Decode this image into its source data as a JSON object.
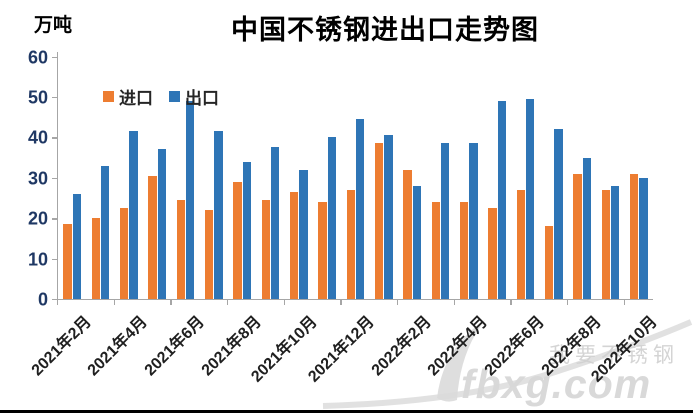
{
  "header": {
    "title": "中国不锈钢进出口走势图",
    "unit_label": "万吨"
  },
  "legend": [
    {
      "label": "进口",
      "color": "#ED7D31"
    },
    {
      "label": "出口",
      "color": "#2E75B6"
    }
  ],
  "watermark": {
    "slogan_text": "我要不锈钢",
    "site_text": "fbxg.com",
    "color": "#d8d8d8"
  },
  "colors": {
    "import_bar": "#ED7D31",
    "export_bar": "#2E75B6",
    "axis": "#a6a6a6",
    "y_tick_label": "#1f3864",
    "x_tick_label": "#1f1f1f"
  },
  "chart_data": {
    "type": "bar",
    "title": "中国不锈钢进出口走势图",
    "ylabel": "万吨",
    "xlabel": "",
    "ylim": [
      0,
      60
    ],
    "y_ticks": [
      0,
      10,
      20,
      30,
      40,
      50,
      60
    ],
    "grid": false,
    "legend_position": "top-left-inside",
    "categories": [
      "2021年2月",
      "2021年3月",
      "2021年4月",
      "2021年5月",
      "2021年6月",
      "2021年7月",
      "2021年8月",
      "2021年9月",
      "2021年10月",
      "2021年11月",
      "2021年12月",
      "2022年1月",
      "2022年2月",
      "2022年3月",
      "2022年4月",
      "2022年5月",
      "2022年6月",
      "2022年7月",
      "2022年8月",
      "2022年9月",
      "2022年10月"
    ],
    "x_tick_labels_shown": [
      "2021年2月",
      "2021年4月",
      "2021年6月",
      "2021年8月",
      "2021年10月",
      "2021年12月",
      "2022年2月",
      "2022年4月",
      "2022年6月",
      "2022年8月",
      "2022年10月"
    ],
    "series": [
      {
        "name": "进口",
        "color": "#ED7D31",
        "values": [
          18.5,
          20,
          22.5,
          30.5,
          24.5,
          22,
          29,
          24.5,
          26.5,
          24,
          27,
          38.5,
          32,
          24,
          24,
          22.5,
          27,
          18,
          31,
          27,
          31
        ]
      },
      {
        "name": "出口",
        "color": "#2E75B6",
        "values": [
          26,
          33,
          41.5,
          37,
          49,
          41.5,
          34,
          37.5,
          32,
          40,
          44.5,
          40.5,
          28,
          38.5,
          38.5,
          49,
          49.5,
          42,
          35,
          28,
          30
        ]
      }
    ]
  }
}
